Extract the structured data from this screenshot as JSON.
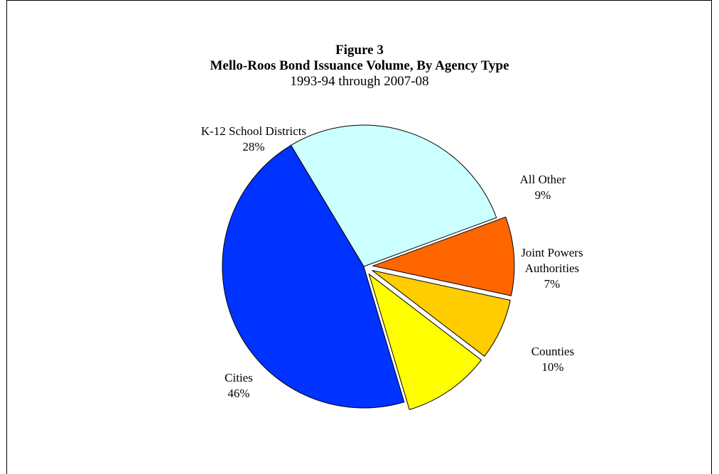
{
  "chart_data": {
    "type": "pie",
    "figure_label": "Figure 3",
    "title": "Mello-Roos Bond Issuance Volume, By Agency Type",
    "subtitle": "1993-94 through 2007-08",
    "slices": [
      {
        "name": "K-12 School Districts",
        "value": 28,
        "label": "28%",
        "color": "#CCFFFF",
        "exploded": false
      },
      {
        "name": "All Other",
        "value": 9,
        "label": "9%",
        "color": "#FF6600",
        "exploded": true
      },
      {
        "name": "Joint Powers Authorities",
        "value": 7,
        "label": "7%",
        "color": "#FFCC00",
        "exploded": true
      },
      {
        "name": "Counties",
        "value": 10,
        "label": "10%",
        "color": "#FFFF00",
        "exploded": true
      },
      {
        "name": "Cities",
        "value": 46,
        "label": "46%",
        "color": "#0033FF",
        "exploded": false
      }
    ]
  }
}
